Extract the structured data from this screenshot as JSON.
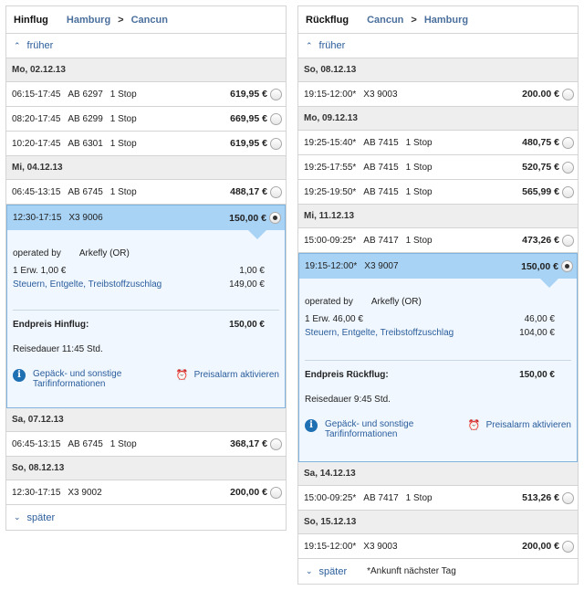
{
  "outbound": {
    "title": "Hinflug",
    "from": "Hamburg",
    "arrow": ">",
    "to": "Cancun",
    "earlier": "früher",
    "later": "später",
    "rows1": [
      {
        "time": "06:15-17:45",
        "flight": "AB 6297",
        "stops": "1 Stop",
        "price": "619,95 €"
      },
      {
        "time": "08:20-17:45",
        "flight": "AB 6299",
        "stops": "1 Stop",
        "price": "669,95 €"
      },
      {
        "time": "10:20-17:45",
        "flight": "AB 6301",
        "stops": "1 Stop",
        "price": "619,95 €"
      }
    ],
    "dates": [
      "Mo, 02.12.13",
      "Mi, 04.12.13",
      "Sa, 07.12.13",
      "So, 08.12.13"
    ],
    "row_mi": {
      "time": "06:45-13:15",
      "flight": "AB 6745",
      "stops": "1 Stop",
      "price": "488,17 €"
    },
    "selected": {
      "time": "12:30-17:15",
      "flight": "X3 9006",
      "stops": "",
      "price": "150,00 €"
    },
    "detail": {
      "operated_label": "operated by",
      "operated_value": "Arkefly (OR)",
      "pax_label": "1 Erw. 1,00 €",
      "pax_value": "1,00 €",
      "tax_label": "Steuern, Entgelte, Treibstoffzuschlag",
      "tax_value": "149,00 €",
      "end_label": "Endpreis Hinflug:",
      "end_value": "150,00 €",
      "duration": "Reisedauer 11:45 Std.",
      "luggage": "Gepäck- und sonstige Tarifinformationen",
      "alarm": "Preisalarm aktivieren"
    },
    "row_sa": {
      "time": "06:45-13:15",
      "flight": "AB 6745",
      "stops": "1 Stop",
      "price": "368,17 €"
    },
    "row_so": {
      "time": "12:30-17:15",
      "flight": "X3 9002",
      "stops": "",
      "price": "200,00 €"
    }
  },
  "inbound": {
    "title": "Rückflug",
    "from": "Cancun",
    "arrow": ">",
    "to": "Hamburg",
    "earlier": "früher",
    "later": "später",
    "footnote": "*Ankunft nächster Tag",
    "dates": [
      "So, 08.12.13",
      "Mo, 09.12.13",
      "Mi, 11.12.13",
      "Sa, 14.12.13",
      "So, 15.12.13"
    ],
    "row_so": {
      "time": "19:15-12:00*",
      "flight": "X3 9003",
      "stops": "",
      "price": "200.00 €"
    },
    "rows_mo": [
      {
        "time": "19:25-15:40*",
        "flight": "AB 7415",
        "stops": "1 Stop",
        "price": "480,75 €"
      },
      {
        "time": "19:25-17:55*",
        "flight": "AB 7415",
        "stops": "1 Stop",
        "price": "520,75 €"
      },
      {
        "time": "19:25-19:50*",
        "flight": "AB 7415",
        "stops": "1 Stop",
        "price": "565,99 €"
      }
    ],
    "row_mi": {
      "time": "15:00-09:25*",
      "flight": "AB 7417",
      "stops": "1 Stop",
      "price": "473,26 €"
    },
    "selected": {
      "time": "19:15-12:00*",
      "flight": "X3 9007",
      "stops": "",
      "price": "150,00 €"
    },
    "detail": {
      "operated_label": "operated by",
      "operated_value": "Arkefly (OR)",
      "pax_label": "1 Erw. 46,00 €",
      "pax_value": "46,00 €",
      "tax_label": "Steuern, Entgelte, Treibstoffzuschlag",
      "tax_value": "104,00 €",
      "end_label": "Endpreis Rückflug:",
      "end_value": "150,00 €",
      "duration": "Reisedauer 9:45 Std.",
      "luggage": "Gepäck- und sonstige Tarifinformationen",
      "alarm": "Preisalarm aktivieren"
    },
    "row_sa": {
      "time": "15:00-09:25*",
      "flight": "AB 7417",
      "stops": "1 Stop",
      "price": "513,26 €"
    },
    "row_so2": {
      "time": "19:15-12:00*",
      "flight": "X3 9003",
      "stops": "",
      "price": "200,00 €"
    }
  },
  "icons": {
    "up": "double-chevron-up-icon",
    "down": "double-chevron-down-icon",
    "info": "info-icon",
    "alarm": "alarm-clock-icon"
  },
  "colors": {
    "accent": "#2a5d9c",
    "selected": "#a9d3f5",
    "detail_bg": "#f0f7fe",
    "date_bg": "#eeeeee"
  }
}
